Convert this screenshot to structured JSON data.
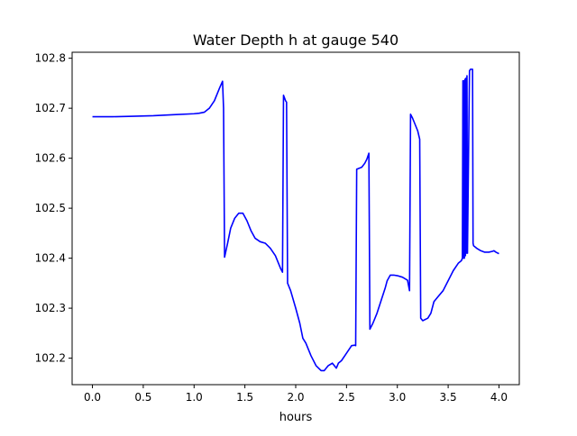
{
  "chart_data": {
    "type": "line",
    "title": "Water Depth h at gauge 540",
    "xlabel": "hours",
    "ylabel": "",
    "xlim": [
      -0.2,
      4.2
    ],
    "ylim": [
      102.147,
      102.812
    ],
    "x_ticks": [
      0.0,
      0.5,
      1.0,
      1.5,
      2.0,
      2.5,
      3.0,
      3.5,
      4.0
    ],
    "x_tick_labels": [
      "0.0",
      "0.5",
      "1.0",
      "1.5",
      "2.0",
      "2.5",
      "3.0",
      "3.5",
      "4.0"
    ],
    "y_ticks": [
      102.2,
      102.3,
      102.4,
      102.5,
      102.6,
      102.7,
      102.8
    ],
    "y_tick_labels": [
      "102.2",
      "102.3",
      "102.4",
      "102.5",
      "102.6",
      "102.7",
      "102.8"
    ],
    "grid": false,
    "series": [
      {
        "color": "#0000ff",
        "x": [
          0.0,
          0.2,
          0.4,
          0.6,
          0.8,
          1.0,
          1.05,
          1.1,
          1.15,
          1.2,
          1.25,
          1.28,
          1.29,
          1.3,
          1.33,
          1.36,
          1.4,
          1.44,
          1.48,
          1.52,
          1.56,
          1.6,
          1.65,
          1.7,
          1.75,
          1.8,
          1.85,
          1.87,
          1.88,
          1.9,
          1.91,
          1.92,
          1.95,
          2.0,
          2.04,
          2.07,
          2.1,
          2.15,
          2.2,
          2.25,
          2.28,
          2.32,
          2.36,
          2.38,
          2.4,
          2.42,
          2.45,
          2.5,
          2.55,
          2.58,
          2.59,
          2.6,
          2.65,
          2.68,
          2.7,
          2.72,
          2.73,
          2.76,
          2.8,
          2.84,
          2.88,
          2.9,
          2.93,
          2.97,
          3.0,
          3.05,
          3.1,
          3.12,
          3.13,
          3.15,
          3.2,
          3.22,
          3.23,
          3.25,
          3.3,
          3.33,
          3.36,
          3.4,
          3.45,
          3.5,
          3.55,
          3.6,
          3.63,
          3.64,
          3.645,
          3.65,
          3.655,
          3.66,
          3.665,
          3.67,
          3.675,
          3.68,
          3.685,
          3.69,
          3.71,
          3.72,
          3.74,
          3.745,
          3.75,
          3.78,
          3.82,
          3.86,
          3.9,
          3.94,
          3.95,
          3.97,
          4.0
        ],
        "y": [
          102.683,
          102.683,
          102.684,
          102.685,
          102.687,
          102.689,
          102.69,
          102.692,
          102.7,
          102.715,
          102.74,
          102.754,
          102.7,
          102.402,
          102.43,
          102.46,
          102.48,
          102.49,
          102.49,
          102.475,
          102.455,
          102.44,
          102.433,
          102.43,
          102.42,
          102.405,
          102.38,
          102.372,
          102.726,
          102.715,
          102.712,
          102.35,
          102.335,
          102.3,
          102.27,
          102.24,
          102.23,
          102.205,
          102.185,
          102.175,
          102.175,
          102.185,
          102.19,
          102.185,
          102.18,
          102.19,
          102.195,
          102.21,
          102.225,
          102.226,
          102.225,
          102.578,
          102.582,
          102.59,
          102.598,
          102.61,
          102.258,
          102.27,
          102.29,
          102.315,
          102.34,
          102.355,
          102.366,
          102.366,
          102.365,
          102.362,
          102.356,
          102.335,
          102.688,
          102.68,
          102.655,
          102.638,
          102.28,
          102.275,
          102.28,
          102.29,
          102.313,
          102.323,
          102.335,
          102.355,
          102.375,
          102.39,
          102.395,
          102.4,
          102.755,
          102.4,
          102.755,
          102.4,
          102.758,
          102.405,
          102.76,
          102.41,
          102.765,
          102.41,
          102.775,
          102.778,
          102.778,
          102.43,
          102.425,
          102.42,
          102.415,
          102.412,
          102.412,
          102.414,
          102.415,
          102.412,
          102.409
        ]
      }
    ]
  }
}
